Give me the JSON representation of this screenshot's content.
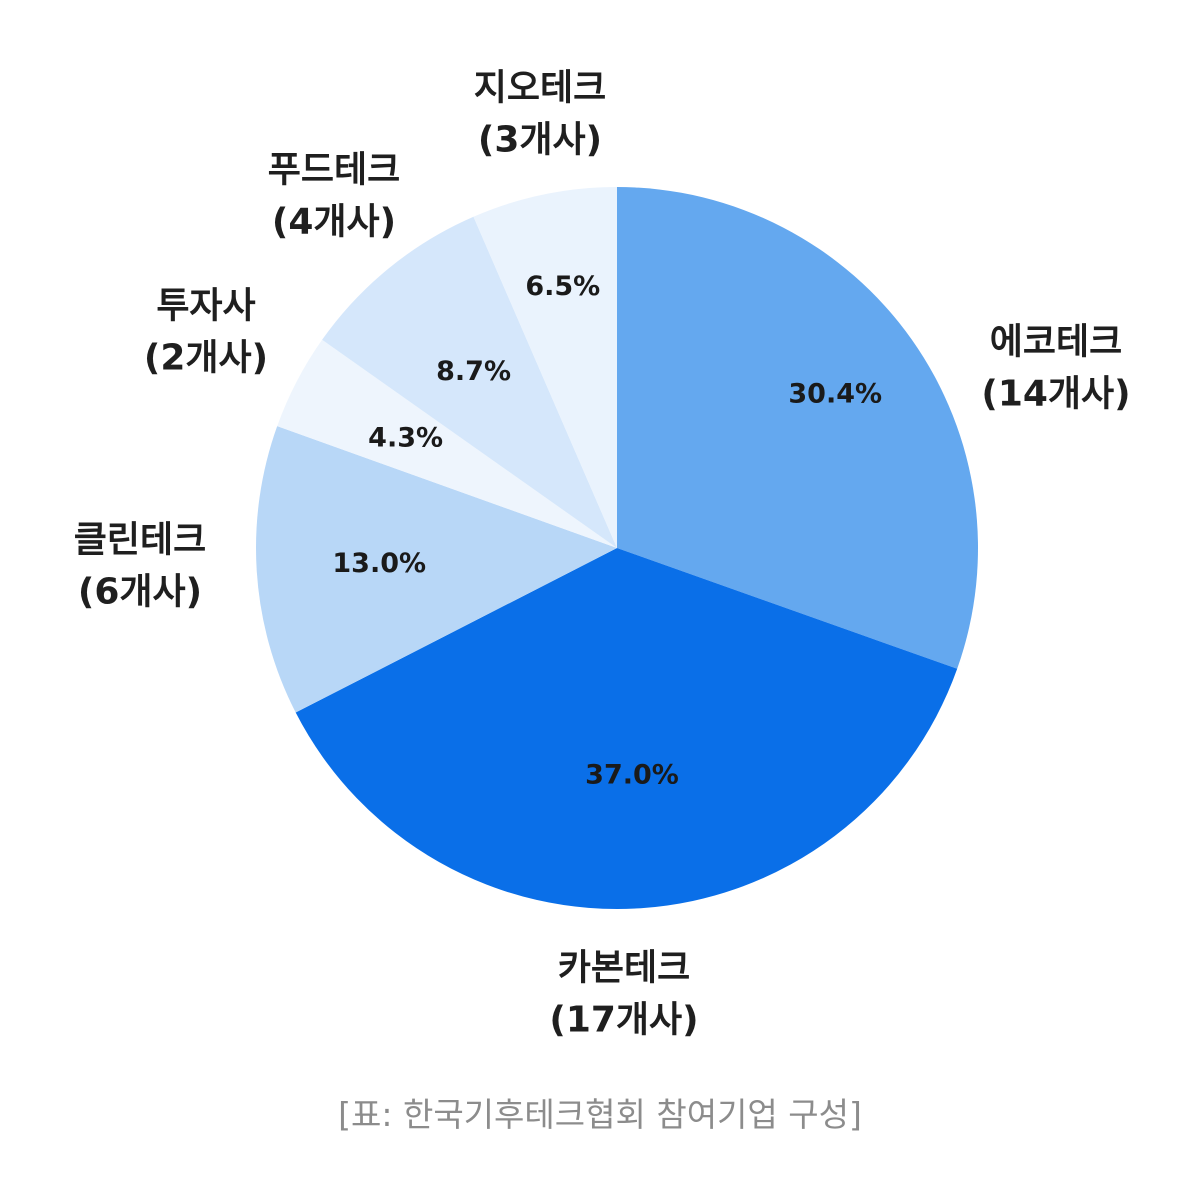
{
  "chart_data": {
    "type": "pie",
    "start": "top",
    "direction": "clockwise",
    "slices": [
      {
        "name": "에코테크",
        "count_label": "(14개사)",
        "value": 30.4,
        "value_label": "30.4%",
        "color": "#64a8ef"
      },
      {
        "name": "카본테크",
        "count_label": "(17개사)",
        "value": 37.0,
        "value_label": "37.0%",
        "color": "#0a6fe8"
      },
      {
        "name": "클린테크",
        "count_label": "(6개사)",
        "value": 13.0,
        "value_label": "13.0%",
        "color": "#b8d7f7"
      },
      {
        "name": "투자사",
        "count_label": "(2개사)",
        "value": 4.3,
        "value_label": "4.3%",
        "color": "#eef5fd"
      },
      {
        "name": "푸드테크",
        "count_label": "(4개사)",
        "value": 8.7,
        "value_label": "8.7%",
        "color": "#d5e7fb"
      },
      {
        "name": "지오테크",
        "count_label": "(3개사)",
        "value": 6.5,
        "value_label": "6.5%",
        "color": "#eaf3fd"
      }
    ]
  },
  "caption": "[표: 한국기후테크협회 참여기업 구성]"
}
